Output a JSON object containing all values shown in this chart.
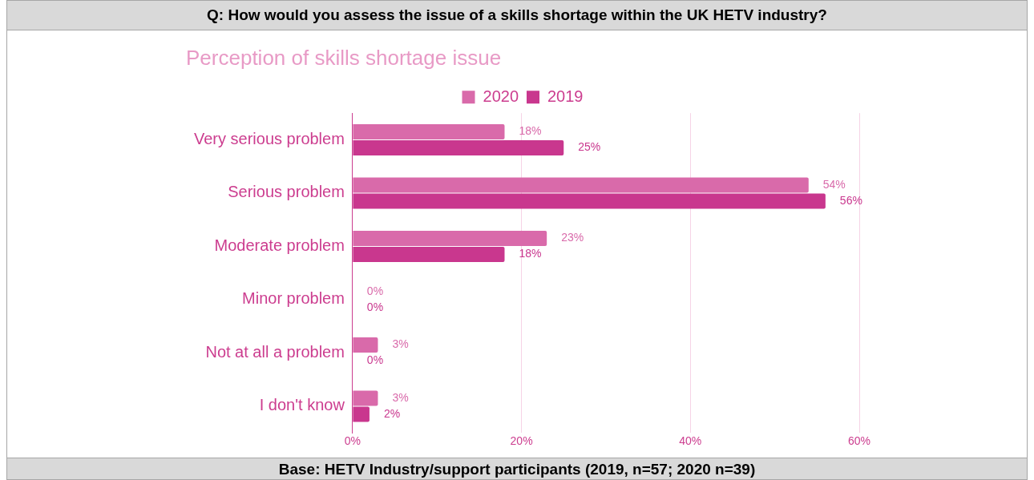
{
  "chart_data": {
    "type": "bar",
    "orientation": "horizontal",
    "title": "Perception of skills shortage issue",
    "annotations": [
      "Q: How would you assess the issue of a skills shortage within the UK HETV industry?",
      "Base: HETV Industry/support participants (2019, n=57; 2020 n=39)"
    ],
    "categories": [
      "Very serious problem",
      "Serious problem",
      "Moderate problem",
      "Minor problem",
      "Not at all a problem",
      "I don't know"
    ],
    "series": [
      {
        "name": "2020",
        "color": "#d96aaa",
        "values": [
          18,
          54,
          23,
          0,
          3,
          3
        ],
        "value_labels": [
          "18%",
          "54%",
          "23%",
          "0%",
          "3%",
          "3%"
        ]
      },
      {
        "name": "2019",
        "color": "#c9378e",
        "values": [
          25,
          56,
          18,
          0,
          0,
          2
        ],
        "value_labels": [
          "25%",
          "56%",
          "18%",
          "0%",
          "0%",
          "2%"
        ]
      }
    ],
    "xlim": [
      0,
      60
    ],
    "xticks": [
      {
        "value": 0,
        "label": "0%"
      },
      {
        "value": 20,
        "label": "20%"
      },
      {
        "value": 40,
        "label": "40%"
      },
      {
        "value": 60,
        "label": "60%"
      }
    ],
    "grid": "x",
    "legend": "top"
  }
}
